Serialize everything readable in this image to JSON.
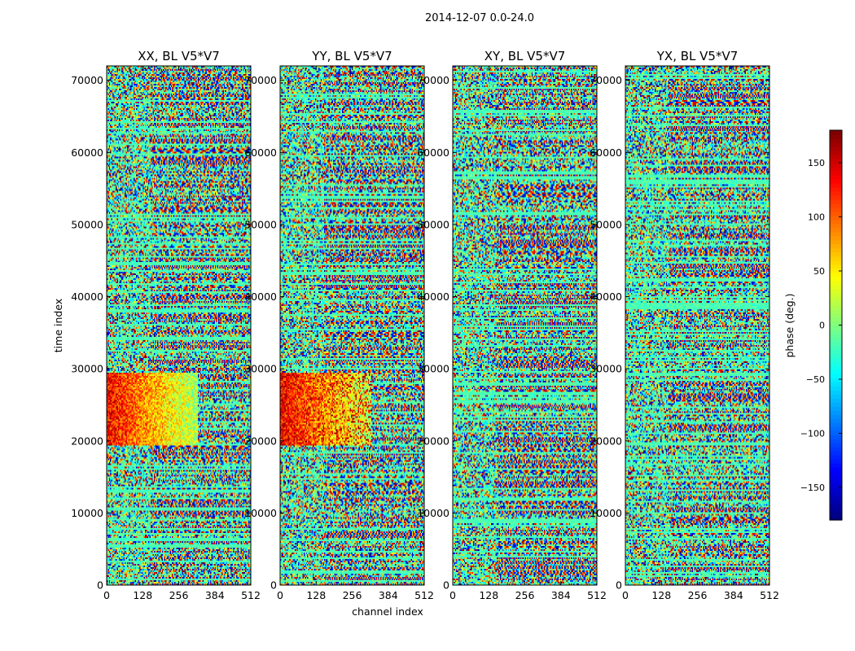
{
  "figure": {
    "suptitle": "2014-12-07 0.0-24.0",
    "xlabel": "channel index",
    "ylabel": "time index",
    "colorbar_label": "phase (deg.)"
  },
  "chart_data": {
    "type": "heatmap",
    "colormap": "jet",
    "xlim": [
      0,
      512
    ],
    "ylim": [
      0,
      72000
    ],
    "x_ticks": [
      0,
      128,
      256,
      384,
      512
    ],
    "y_ticks": [
      0,
      10000,
      20000,
      30000,
      40000,
      50000,
      60000,
      70000
    ],
    "colorbar": {
      "range": [
        -180,
        180
      ],
      "ticks": [
        150,
        100,
        50,
        0,
        -50,
        -100,
        -150
      ]
    },
    "panels": [
      {
        "title": "XX, BL V5*V7"
      },
      {
        "title": "YY, BL V5*V7"
      },
      {
        "title": "XY, BL V5*V7"
      },
      {
        "title": "YX, BL V5*V7"
      }
    ]
  }
}
